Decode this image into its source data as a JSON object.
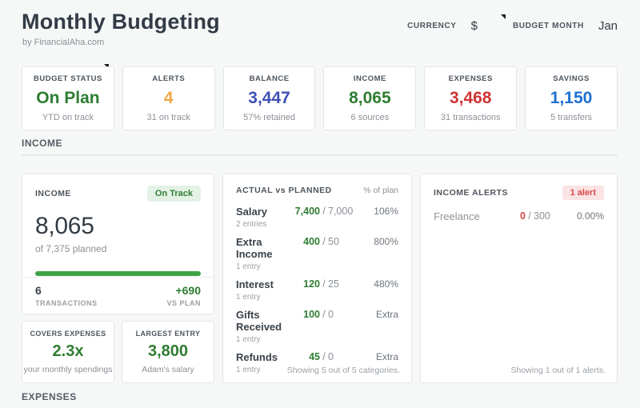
{
  "header": {
    "title": "Monthly Budgeting",
    "subtitle": "by FinancialAha.com",
    "currency_label": "CURRENCY",
    "currency_value": "$",
    "budget_month_label": "BUDGET MONTH",
    "budget_month_value": "Jan"
  },
  "colors": {
    "green": "#2e7d32",
    "orange": "#efa73f",
    "indigo": "#4050b5",
    "red": "#cf3434",
    "blue": "#1e6fd0",
    "progress_green": "#3fa345",
    "badge_green_bg": "#e4f2e6",
    "badge_red_bg": "#fbe3e4"
  },
  "stat_cards": [
    {
      "label": "BUDGET STATUS",
      "value": "On Plan",
      "sub": "YTD on track"
    },
    {
      "label": "ALERTS",
      "value": "4",
      "sub": "31 on track"
    },
    {
      "label": "BALANCE",
      "value": "3,447",
      "sub": "57% retained"
    },
    {
      "label": "INCOME",
      "value": "8,065",
      "sub": "6 sources"
    },
    {
      "label": "EXPENSES",
      "value": "3,468",
      "sub": "31 transactions"
    },
    {
      "label": "SAVINGS",
      "value": "1,150",
      "sub": "5 transfers"
    }
  ],
  "income_section": {
    "title": "INCOME",
    "summary": {
      "label": "INCOME",
      "badge": "On Track",
      "value": "8,065",
      "sub": "of 7,375 planned",
      "transactions_value": "6",
      "transactions_label": "TRANSACTIONS",
      "vs_plan_value": "+690",
      "vs_plan_label": "VS PLAN"
    },
    "mini_cards": [
      {
        "label": "COVERS EXPENSES",
        "value": "2.3x",
        "sub": "your monthly spendings"
      },
      {
        "label": "LARGEST ENTRY",
        "value": "3,800",
        "sub": "Adam's salary"
      }
    ],
    "actual_vs_planned": {
      "title": "ACTUAL vs PLANNED",
      "col_header": "% of plan",
      "separator": "/",
      "rows": [
        {
          "name": "Salary",
          "entries": "2 entries",
          "actual": "7,400",
          "planned": "7,000",
          "percent": "106%"
        },
        {
          "name": "Extra Income",
          "entries": "1 entry",
          "actual": "400",
          "planned": "50",
          "percent": "800%"
        },
        {
          "name": "Interest",
          "entries": "1 entry",
          "actual": "120",
          "planned": "25",
          "percent": "480%"
        },
        {
          "name": "Gifts Received",
          "entries": "1 entry",
          "actual": "100",
          "planned": "0",
          "percent": "Extra"
        },
        {
          "name": "Refunds",
          "entries": "1 entry",
          "actual": "45",
          "planned": "0",
          "percent": "Extra"
        }
      ],
      "footer": "Showing 5 out of 5 categories."
    },
    "alerts": {
      "title": "INCOME ALERTS",
      "badge": "1 alert",
      "separator": "/",
      "rows": [
        {
          "name": "Freelance",
          "actual": "0",
          "planned": "300",
          "percent": "0.00%"
        }
      ],
      "footer": "Showing 1 out of 1 alerts."
    }
  },
  "expenses_section": {
    "title": "EXPENSES"
  }
}
